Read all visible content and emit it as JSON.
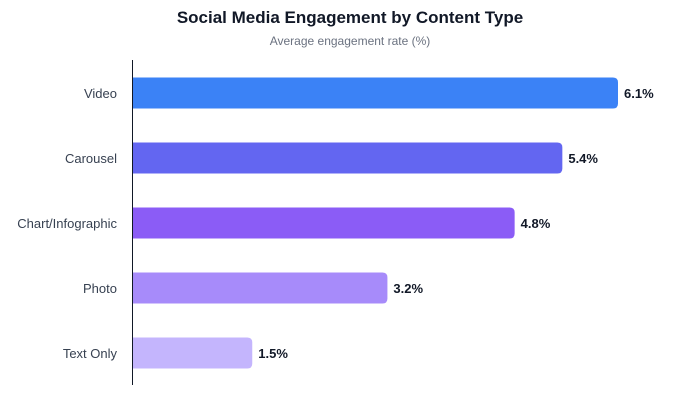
{
  "chart_data": {
    "type": "bar",
    "orientation": "horizontal",
    "title": "Social Media Engagement by Content Type",
    "subtitle": "Average engagement rate (%)",
    "categories": [
      "Video",
      "Carousel",
      "Chart/Infographic",
      "Photo",
      "Text Only"
    ],
    "values": [
      6.1,
      5.4,
      4.8,
      3.2,
      1.5
    ],
    "data_labels": [
      "6.1%",
      "5.4%",
      "4.8%",
      "3.2%",
      "1.5%"
    ],
    "colors": [
      "#3b82f6",
      "#6366f1",
      "#8b5cf6",
      "#a78bfa",
      "#c4b5fd"
    ],
    "xlim": [
      0,
      6.1
    ],
    "grid": false,
    "legend": "none"
  }
}
